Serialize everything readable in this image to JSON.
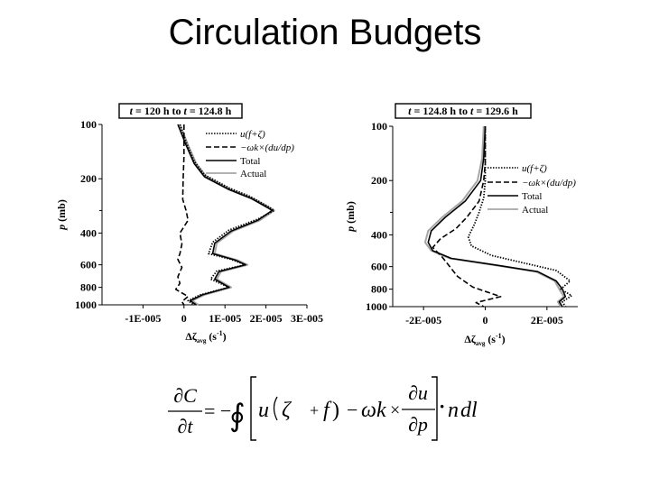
{
  "slide": {
    "title": "Circulation Budgets"
  },
  "chart_data": [
    {
      "type": "line",
      "title_parts": {
        "t1": "t",
        "mid": " = 120 h to ",
        "t2": "t",
        "end": " = 124.8 h"
      },
      "ylabel": {
        "p": "p",
        "rest": " (mb)"
      },
      "xlabel": {
        "sym": "Δζ",
        "sub": "avg",
        "unit": " (s",
        "exp": "-1",
        "close": ")"
      },
      "xlim": [
        -2e-05,
        3e-05
      ],
      "ylim": [
        100,
        1000
      ],
      "y_scale": "log-pressure",
      "x_ticks": [
        -1e-05,
        0,
        1e-05,
        2e-05,
        3e-05
      ],
      "x_tick_labels": [
        "-1E-005",
        "0",
        "1E-005",
        "2E-005",
        "3E-005"
      ],
      "y_ticks": [
        100,
        200,
        400,
        600,
        800,
        1000
      ],
      "y_tick_labels": [
        "100",
        "200",
        "400",
        "600",
        "800",
        "1000"
      ],
      "y_minor_ticks": [
        300
      ],
      "legend": {
        "entries": [
          "u(f+ζ)",
          "−ωk×(du/dp)",
          "Total",
          "Actual"
        ],
        "placement": "top-right"
      },
      "series": [
        {
          "key": "adv",
          "style": "dotted",
          "color": "#000000",
          "points": [
            [
              -1e-06,
              100
            ],
            [
              5e-07,
              125
            ],
            [
              2.5e-06,
              160
            ],
            [
              5e-06,
              190
            ],
            [
              1.1e-05,
              225
            ],
            [
              1.6e-05,
              250
            ],
            [
              2.05e-05,
              285
            ],
            [
              2.2e-05,
              300
            ],
            [
              1.8e-05,
              335
            ],
            [
              1.1e-05,
              385
            ],
            [
              7e-06,
              450
            ],
            [
              6e-06,
              520
            ],
            [
              1.15e-05,
              560
            ],
            [
              1.5e-05,
              600
            ],
            [
              8e-06,
              650
            ],
            [
              6.5e-06,
              720
            ],
            [
              1.1e-05,
              800
            ],
            [
              4e-06,
              880
            ],
            [
              1e-06,
              950
            ],
            [
              2.5e-06,
              1000
            ]
          ]
        },
        {
          "key": "tilt",
          "style": "dashed",
          "color": "#000000",
          "points": [
            [
              0,
              100
            ],
            [
              0,
              150
            ],
            [
              -2e-07,
              200
            ],
            [
              -3e-07,
              260
            ],
            [
              5e-07,
              300
            ],
            [
              1e-06,
              340
            ],
            [
              -1e-06,
              400
            ],
            [
              -5e-07,
              460
            ],
            [
              -1e-06,
              520
            ],
            [
              -1.5e-06,
              560
            ],
            [
              -5e-07,
              620
            ],
            [
              -1.5e-06,
              700
            ],
            [
              -1e-06,
              760
            ],
            [
              -2e-06,
              820
            ],
            [
              1e-06,
              900
            ],
            [
              -5e-07,
              960
            ],
            [
              0,
              1000
            ]
          ]
        },
        {
          "key": "total",
          "style": "solid",
          "color": "#000000",
          "points": [
            [
              -1.5e-06,
              100
            ],
            [
              5e-07,
              130
            ],
            [
              2.5e-06,
              165
            ],
            [
              5e-06,
              195
            ],
            [
              1.1e-05,
              230
            ],
            [
              1.65e-05,
              258
            ],
            [
              2.05e-05,
              290
            ],
            [
              2.15e-05,
              300
            ],
            [
              1.8e-05,
              340
            ],
            [
              1.15e-05,
              390
            ],
            [
              7.5e-06,
              455
            ],
            [
              7e-06,
              520
            ],
            [
              1.25e-05,
              565
            ],
            [
              1.5e-05,
              600
            ],
            [
              8.5e-06,
              655
            ],
            [
              7.5e-06,
              720
            ],
            [
              1.1e-05,
              800
            ],
            [
              4.5e-06,
              880
            ],
            [
              1.5e-06,
              950
            ],
            [
              3e-06,
              1000
            ]
          ]
        },
        {
          "key": "actual",
          "style": "solid",
          "color": "#a6a6a6",
          "points": [
            [
              -1e-06,
              100
            ],
            [
              1e-06,
              130
            ],
            [
              3e-06,
              165
            ],
            [
              5.5e-06,
              195
            ],
            [
              1.15e-05,
              230
            ],
            [
              1.7e-05,
              258
            ],
            [
              2.1e-05,
              290
            ],
            [
              2.2e-05,
              300
            ],
            [
              1.85e-05,
              340
            ],
            [
              1.2e-05,
              390
            ],
            [
              8e-06,
              455
            ],
            [
              7.5e-06,
              520
            ],
            [
              1.3e-05,
              565
            ],
            [
              1.55e-05,
              600
            ],
            [
              9e-06,
              655
            ],
            [
              8e-06,
              720
            ],
            [
              1.15e-05,
              800
            ],
            [
              5e-06,
              880
            ],
            [
              2e-06,
              950
            ],
            [
              3.5e-06,
              1000
            ]
          ]
        }
      ]
    },
    {
      "type": "line",
      "title_parts": {
        "t1": "t",
        "mid": " = 124.8 h to ",
        "t2": "t",
        "end": " = 129.6 h"
      },
      "ylabel": {
        "p": "p",
        "rest": " (mb)"
      },
      "xlabel": {
        "sym": "Δζ",
        "sub": "avg",
        "unit": " (s",
        "exp": "-1",
        "close": ")"
      },
      "xlim": [
        -3e-05,
        3e-05
      ],
      "ylim": [
        100,
        1000
      ],
      "y_scale": "log-pressure",
      "x_ticks": [
        -2e-05,
        0,
        2e-05
      ],
      "x_tick_labels": [
        "-2E-005",
        "0",
        "2E-005"
      ],
      "y_ticks": [
        100,
        200,
        400,
        600,
        800,
        1000
      ],
      "y_tick_labels": [
        "100",
        "200",
        "400",
        "600",
        "800",
        "1000"
      ],
      "y_minor_ticks": [
        300
      ],
      "legend": {
        "entries": [
          "u(f+ζ)",
          "−ωk×(du/dp)",
          "Total",
          "Actual"
        ],
        "placement": "right"
      },
      "series": [
        {
          "key": "adv",
          "style": "dotted",
          "color": "#000000",
          "points": [
            [
              0,
              100
            ],
            [
              0,
              150
            ],
            [
              0,
              200
            ],
            [
              -5e-07,
              250
            ],
            [
              -2e-06,
              300
            ],
            [
              -3.5e-06,
              350
            ],
            [
              -5.5e-06,
              410
            ],
            [
              -4.5e-06,
              460
            ],
            [
              2e-06,
              520
            ],
            [
              1.2e-05,
              570
            ],
            [
              2.3e-05,
              630
            ],
            [
              2.75e-05,
              720
            ],
            [
              2.45e-05,
              800
            ],
            [
              2.8e-05,
              870
            ],
            [
              2.5e-05,
              940
            ],
            [
              2.6e-05,
              1000
            ]
          ]
        },
        {
          "key": "tilt",
          "style": "dashed",
          "color": "#000000",
          "points": [
            [
              0,
              100
            ],
            [
              0,
              160
            ],
            [
              -5e-07,
              200
            ],
            [
              -2e-06,
              260
            ],
            [
              -6e-06,
              320
            ],
            [
              -9.5e-06,
              370
            ],
            [
              -1.45e-05,
              420
            ],
            [
              -1.7e-05,
              470
            ],
            [
              -1.4e-05,
              530
            ],
            [
              -1.15e-05,
              600
            ],
            [
              -9e-06,
              680
            ],
            [
              -4e-06,
              780
            ],
            [
              5e-06,
              880
            ],
            [
              -3e-06,
              950
            ],
            [
              -5e-07,
              1000
            ]
          ]
        },
        {
          "key": "total",
          "style": "solid",
          "color": "#000000",
          "points": [
            [
              0,
              100
            ],
            [
              -5e-07,
              150
            ],
            [
              -1.5e-06,
              200
            ],
            [
              -6.5e-06,
              260
            ],
            [
              -1.3e-05,
              320
            ],
            [
              -1.75e-05,
              380
            ],
            [
              -1.85e-05,
              440
            ],
            [
              -1.7e-05,
              490
            ],
            [
              -1.1e-05,
              540
            ],
            [
              4e-06,
              590
            ],
            [
              1.7e-05,
              640
            ],
            [
              2.3e-05,
              720
            ],
            [
              2.5e-05,
              800
            ],
            [
              2.6e-05,
              880
            ],
            [
              2.4e-05,
              940
            ],
            [
              2.5e-05,
              1000
            ]
          ]
        },
        {
          "key": "actual",
          "style": "solid",
          "color": "#a6a6a6",
          "points": [
            [
              -5e-07,
              100
            ],
            [
              -1e-06,
              150
            ],
            [
              -2.5e-06,
              200
            ],
            [
              -7.5e-06,
              260
            ],
            [
              -1.4e-05,
              320
            ],
            [
              -1.85e-05,
              380
            ],
            [
              -1.95e-05,
              440
            ],
            [
              -1.75e-05,
              490
            ],
            [
              -1.15e-05,
              540
            ],
            [
              3.5e-06,
              590
            ],
            [
              1.65e-05,
              640
            ],
            [
              2.25e-05,
              720
            ],
            [
              2.4e-05,
              800
            ],
            [
              2.55e-05,
              880
            ],
            [
              2.35e-05,
              940
            ],
            [
              2.45e-05,
              1000
            ]
          ]
        }
      ]
    }
  ],
  "equation": {
    "dC": "∂C",
    "dt": "∂t",
    "eq": "= −",
    "integral": "∮",
    "u": "u",
    "zeta": "ζ",
    "plus": "+",
    "f": "f",
    "close": ")",
    "minus": "−",
    "omega": "ω",
    "khat": "k",
    "times": "×",
    "du": "∂u",
    "dp": "∂p",
    "dot": "·",
    "n": "n",
    "dl": "dl"
  }
}
